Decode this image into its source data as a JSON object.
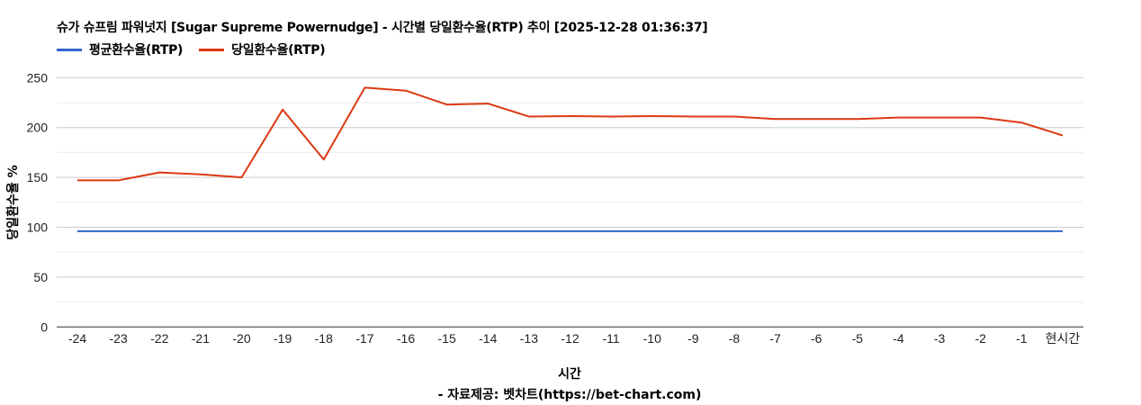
{
  "header": {
    "title": "슈가 슈프림 파워넛지 [Sugar Supreme Powernudge] - 시간별 당일환수율(RTP) 추이 [2025-12-28 01:36:37]"
  },
  "legend": [
    {
      "label": "평균환수율(RTP)",
      "color": "#3366cc"
    },
    {
      "label": "당일환수율(RTP)",
      "color": "#dc3912"
    }
  ],
  "axes": {
    "xlabel": "시간",
    "ylabel": "당일환수율 %",
    "source": "- 자료제공: 벳차트(https://bet-chart.com)"
  },
  "chart_data": {
    "type": "line",
    "title": "슈가 슈프림 파워넛지 [Sugar Supreme Powernudge] - 시간별 당일환수율(RTP) 추이 [2025-12-28 01:36:37]",
    "xlabel": "시간",
    "ylabel": "당일환수율 %",
    "categories": [
      "-24",
      "-23",
      "-22",
      "-21",
      "-20",
      "-19",
      "-18",
      "-17",
      "-16",
      "-15",
      "-14",
      "-13",
      "-12",
      "-11",
      "-10",
      "-9",
      "-8",
      "-7",
      "-6",
      "-5",
      "-4",
      "-3",
      "-2",
      "-1",
      "현시간"
    ],
    "series": [
      {
        "name": "평균환수율(RTP)",
        "color": "#3366cc",
        "values": [
          96,
          96,
          96,
          96,
          96,
          96,
          96,
          96,
          96,
          96,
          96,
          96,
          96,
          96,
          96,
          96,
          96,
          96,
          96,
          96,
          96,
          96,
          96,
          96,
          96
        ]
      },
      {
        "name": "당일환수율(RTP)",
        "color": "#dc3912",
        "values": [
          147,
          147,
          155,
          153,
          150,
          218,
          168,
          240,
          237,
          223,
          224,
          211,
          211.5,
          211,
          211.5,
          211,
          211,
          208.5,
          208.5,
          208.5,
          210,
          210,
          210,
          205,
          192
        ]
      }
    ],
    "yticks": [
      0,
      50,
      100,
      150,
      200,
      250
    ],
    "ylim": [
      0,
      275
    ],
    "grid": true,
    "legend_position": "top-left",
    "source": "- 자료제공: 벳차트(https://bet-chart.com)"
  }
}
